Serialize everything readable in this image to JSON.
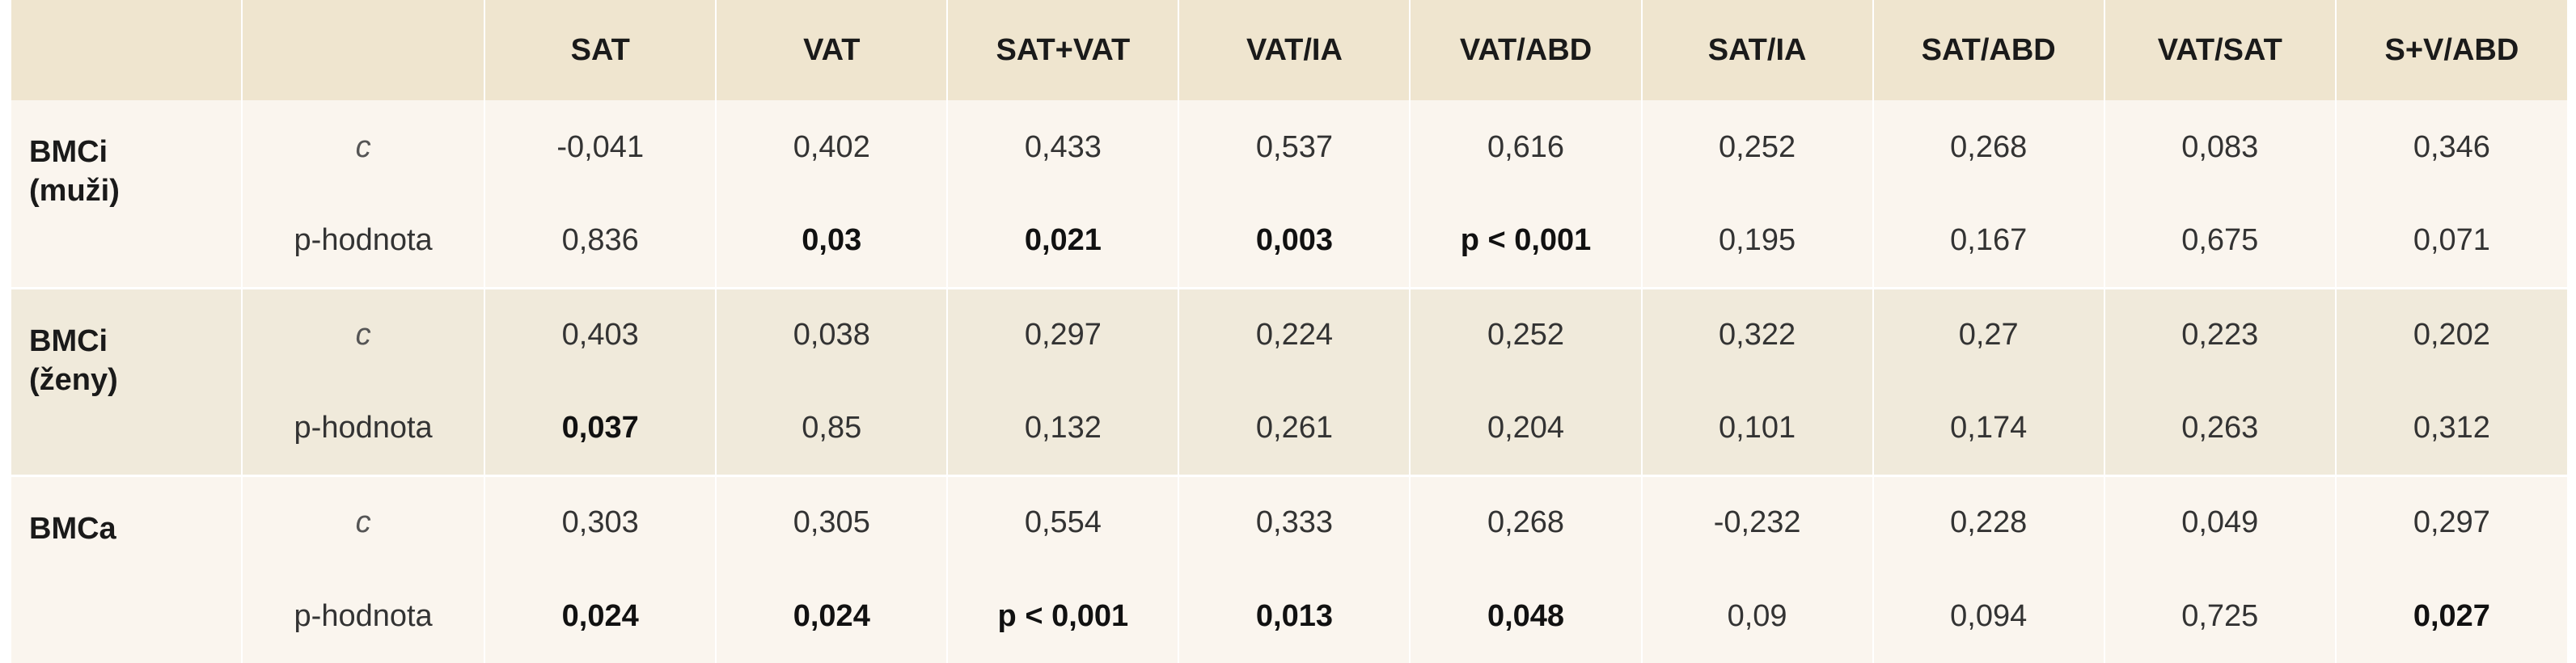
{
  "table": {
    "headers": [
      "",
      "",
      "SAT",
      "VAT",
      "SAT+VAT",
      "VAT/IA",
      "VAT/ABD",
      "SAT/IA",
      "SAT/ABD",
      "VAT/SAT",
      "S+V/ABD"
    ],
    "groups": [
      {
        "label_line1": "BMCi",
        "label_line2": "(muži)",
        "c_label": "c",
        "p_label": "p-hodnota",
        "c_values": [
          "-0,041",
          "0,402",
          "0,433",
          "0,537",
          "0,616",
          "0,252",
          "0,268",
          "0,083",
          "0,346"
        ],
        "p_values": [
          "0,836",
          "0,03",
          "0,021",
          "0,003",
          "p < 0,001",
          "0,195",
          "0,167",
          "0,675",
          "0,071"
        ],
        "p_bold": [
          false,
          true,
          true,
          true,
          true,
          false,
          false,
          false,
          false
        ]
      },
      {
        "label_line1": "BMCi",
        "label_line2": "(ženy)",
        "c_label": "c",
        "p_label": "p-hodnota",
        "c_values": [
          "0,403",
          "0,038",
          "0,297",
          "0,224",
          "0,252",
          "0,322",
          "0,27",
          "0,223",
          "0,202"
        ],
        "p_values": [
          "0,037",
          "0,85",
          "0,132",
          "0,261",
          "0,204",
          "0,101",
          "0,174",
          "0,263",
          "0,312"
        ],
        "p_bold": [
          true,
          false,
          false,
          false,
          false,
          false,
          false,
          false,
          false
        ]
      },
      {
        "label_line1": "BMCa",
        "label_line2": "",
        "c_label": "c",
        "p_label": "p-hodnota",
        "c_values": [
          "0,303",
          "0,305",
          "0,554",
          "0,333",
          "0,268",
          "-0,232",
          "0,228",
          "0,049",
          "0,297"
        ],
        "p_values": [
          "0,024",
          "0,024",
          "p < 0,001",
          "0,013",
          "0,048",
          "0,09",
          "0,094",
          "0,725",
          "0,027"
        ],
        "p_bold": [
          true,
          true,
          true,
          true,
          true,
          false,
          false,
          false,
          true
        ]
      }
    ],
    "colors": {
      "header_bg": "#efe5cf",
      "group_odd_bg": "#faf5ee",
      "group_even_bg": "#f0eadb"
    }
  }
}
